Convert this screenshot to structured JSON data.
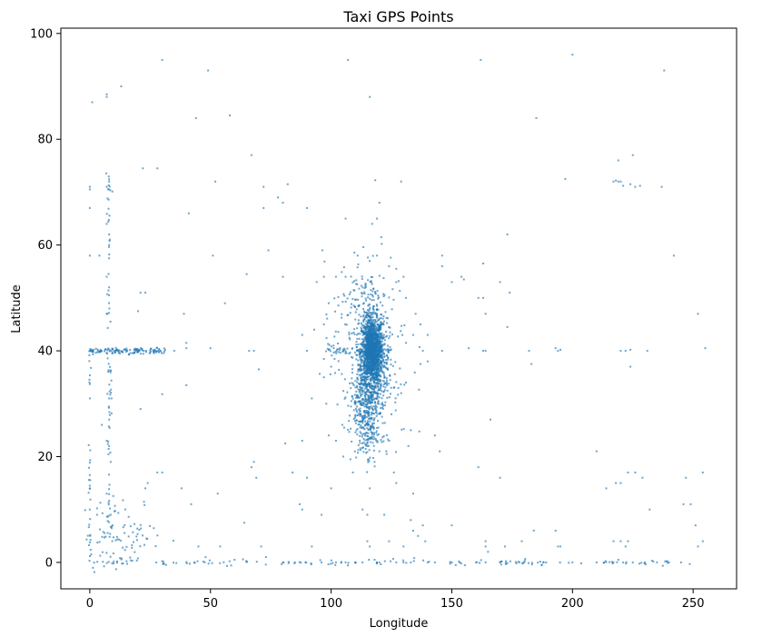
{
  "chart_data": {
    "type": "scatter",
    "title": "Taxi GPS Points",
    "xlabel": "Longitude",
    "ylabel": "Latitude",
    "xlim": [
      -12,
      268
    ],
    "ylim": [
      -5,
      101
    ],
    "xticks": [
      0,
      50,
      100,
      150,
      200,
      250
    ],
    "yticks": [
      0,
      20,
      40,
      60,
      80,
      100
    ],
    "grid": false,
    "point_color": "#1f77b4",
    "series": [
      {
        "name": "GPS points",
        "clusters": [
          {
            "cx": 117,
            "cy": 40,
            "sx": 2.2,
            "sy": 3.0,
            "n": 1400
          },
          {
            "cx": 117,
            "cy": 36,
            "sx": 3.5,
            "sy": 7.0,
            "n": 500
          },
          {
            "cx": 113,
            "cy": 30,
            "sx": 3.0,
            "sy": 3.0,
            "n": 180
          },
          {
            "cx": 115,
            "cy": 24,
            "sx": 2.0,
            "sy": 2.0,
            "n": 80
          },
          {
            "cx": 113,
            "cy": 48,
            "sx": 5.0,
            "sy": 5.0,
            "n": 120
          },
          {
            "cx": 115,
            "cy": 40,
            "sx": 9.0,
            "sy": 9.0,
            "n": 150
          },
          {
            "cx": 14,
            "cy": 5,
            "sx": 8.0,
            "sy": 3.5,
            "n": 90
          }
        ],
        "lines": [
          {
            "from": [
              0,
              40
            ],
            "to": [
              32,
              40
            ],
            "n": 130,
            "jitter": 0.3
          },
          {
            "from": [
              98,
              40
            ],
            "to": [
              125,
              40
            ],
            "n": 60,
            "jitter": 0.3
          },
          {
            "from": [
              0,
              0
            ],
            "to": [
              255,
              0
            ],
            "n": 140,
            "jitter": 0.25
          },
          {
            "from": [
              8,
              0
            ],
            "to": [
              8,
              75
            ],
            "n": 70,
            "jitter": 0.5
          },
          {
            "from": [
              0,
              0
            ],
            "to": [
              0,
              40
            ],
            "n": 30,
            "jitter": 0.3
          }
        ],
        "points": [
          [
            7,
            88.5
          ],
          [
            7,
            88
          ],
          [
            1,
            87
          ],
          [
            13,
            90
          ],
          [
            30,
            95
          ],
          [
            49,
            93
          ],
          [
            58,
            84.5
          ],
          [
            44,
            84
          ],
          [
            107,
            95
          ],
          [
            116,
            88
          ],
          [
            162,
            95
          ],
          [
            200,
            96
          ],
          [
            238,
            93
          ],
          [
            185,
            84
          ],
          [
            67,
            77
          ],
          [
            22,
            74.5
          ],
          [
            28,
            74.5
          ],
          [
            8,
            72
          ],
          [
            7,
            71
          ],
          [
            8,
            70.5
          ],
          [
            0,
            71
          ],
          [
            0,
            70.5
          ],
          [
            52,
            72
          ],
          [
            72,
            71
          ],
          [
            82,
            71.5
          ],
          [
            78,
            69
          ],
          [
            80,
            68
          ],
          [
            72,
            67
          ],
          [
            90,
            67
          ],
          [
            0,
            67
          ],
          [
            41,
            66
          ],
          [
            106,
            65
          ],
          [
            117,
            64
          ],
          [
            119,
            65
          ],
          [
            120,
            68
          ],
          [
            129,
            72
          ],
          [
            197,
            72.5
          ],
          [
            217,
            72
          ],
          [
            218,
            72.2
          ],
          [
            219,
            72
          ],
          [
            220,
            72
          ],
          [
            221,
            71.2
          ],
          [
            224,
            71.5
          ],
          [
            226,
            71
          ],
          [
            228,
            71.2
          ],
          [
            237,
            71
          ],
          [
            219,
            76
          ],
          [
            225,
            77
          ],
          [
            173,
            62
          ],
          [
            170,
            53
          ],
          [
            174,
            51
          ],
          [
            163,
            56.5
          ],
          [
            146,
            58
          ],
          [
            146,
            56
          ],
          [
            150,
            53
          ],
          [
            154,
            54
          ],
          [
            155,
            53.5
          ],
          [
            161,
            50
          ],
          [
            163,
            50
          ],
          [
            164,
            47
          ],
          [
            173,
            44.5
          ],
          [
            157,
            40.5
          ],
          [
            163,
            40
          ],
          [
            164,
            40
          ],
          [
            146,
            40
          ],
          [
            182,
            40
          ],
          [
            193,
            40.5
          ],
          [
            194,
            40
          ],
          [
            195,
            40.2
          ],
          [
            220,
            40
          ],
          [
            222,
            40
          ],
          [
            224,
            40.2
          ],
          [
            231,
            40
          ],
          [
            183,
            37.5
          ],
          [
            224,
            37
          ],
          [
            242,
            58
          ],
          [
            252,
            47
          ],
          [
            255,
            40.5
          ],
          [
            210,
            21
          ],
          [
            214,
            14
          ],
          [
            218,
            15
          ],
          [
            220,
            15
          ],
          [
            223,
            17
          ],
          [
            226,
            17
          ],
          [
            229,
            16
          ],
          [
            232,
            10
          ],
          [
            246,
            11
          ],
          [
            247,
            16
          ],
          [
            249,
            11
          ],
          [
            251,
            7
          ],
          [
            252,
            3
          ],
          [
            254,
            4
          ],
          [
            254,
            17
          ],
          [
            220,
            4
          ],
          [
            222,
            3
          ],
          [
            223,
            4
          ],
          [
            217,
            4
          ],
          [
            195,
            3
          ],
          [
            184,
            6
          ],
          [
            179,
            4
          ],
          [
            170,
            16
          ],
          [
            166,
            27
          ],
          [
            161,
            18
          ],
          [
            145,
            21
          ],
          [
            143,
            24
          ],
          [
            133,
            25
          ],
          [
            132,
            22
          ],
          [
            134,
            13
          ],
          [
            130,
            3
          ],
          [
            138,
            7
          ],
          [
            139,
            4
          ],
          [
            136,
            5
          ],
          [
            124,
            4
          ],
          [
            122,
            9
          ],
          [
            116,
            14
          ],
          [
            109,
            17
          ],
          [
            100,
            14
          ],
          [
            96,
            9
          ],
          [
            87,
            11
          ],
          [
            88,
            10
          ],
          [
            90,
            16
          ],
          [
            88,
            23
          ],
          [
            81,
            22.5
          ],
          [
            84,
            17
          ],
          [
            92,
            31
          ],
          [
            90,
            40
          ],
          [
            93,
            44
          ],
          [
            88,
            43
          ],
          [
            94,
            53
          ],
          [
            97,
            54
          ],
          [
            80,
            54
          ],
          [
            74,
            59
          ],
          [
            65,
            54.5
          ],
          [
            56,
            49
          ],
          [
            51,
            58
          ],
          [
            39,
            47
          ],
          [
            30,
            31.8
          ],
          [
            21,
            29
          ],
          [
            40,
            33.5
          ],
          [
            70,
            36.5
          ],
          [
            68,
            40
          ],
          [
            66,
            40
          ],
          [
            50,
            40.5
          ],
          [
            40,
            40.5
          ],
          [
            40,
            41.5
          ],
          [
            35,
            40
          ],
          [
            21,
            51
          ],
          [
            23,
            51
          ],
          [
            20,
            47.5
          ],
          [
            7,
            54
          ],
          [
            8,
            52
          ],
          [
            8,
            50.5
          ],
          [
            7,
            47
          ],
          [
            4,
            58
          ],
          [
            0,
            58
          ],
          [
            7,
            64
          ],
          [
            8,
            62
          ],
          [
            8,
            60
          ],
          [
            8,
            57.5
          ],
          [
            0,
            31
          ],
          [
            8,
            31
          ],
          [
            9,
            31
          ],
          [
            5,
            26
          ],
          [
            8,
            27
          ],
          [
            7,
            23
          ],
          [
            8,
            22
          ],
          [
            0,
            16.5
          ],
          [
            0,
            14
          ],
          [
            7,
            13
          ],
          [
            0,
            10
          ],
          [
            3,
            9
          ],
          [
            38,
            14
          ],
          [
            42,
            11
          ],
          [
            53,
            13
          ],
          [
            64,
            7.5
          ],
          [
            67,
            18
          ],
          [
            68,
            19
          ],
          [
            69,
            16
          ],
          [
            28,
            17
          ],
          [
            30,
            17
          ],
          [
            23,
            14
          ],
          [
            24,
            15
          ],
          [
            45,
            3
          ],
          [
            48,
            1
          ],
          [
            54,
            3
          ],
          [
            60,
            0.5
          ],
          [
            73,
            1
          ],
          [
            71,
            3
          ],
          [
            80,
            0
          ],
          [
            85,
            0
          ],
          [
            96,
            0
          ],
          [
            102,
            0
          ],
          [
            106,
            0
          ],
          [
            92,
            3
          ],
          [
            126,
            17
          ],
          [
            127,
            15
          ],
          [
            133,
            8
          ],
          [
            134,
            6
          ],
          [
            125,
            28
          ],
          [
            129,
            32
          ],
          [
            126,
            33
          ],
          [
            131,
            34
          ],
          [
            137,
            37.5
          ],
          [
            140,
            38
          ],
          [
            138,
            40
          ],
          [
            131,
            41.5
          ],
          [
            134,
            43
          ],
          [
            137,
            45
          ],
          [
            140,
            43
          ],
          [
            135,
            47
          ],
          [
            127,
            55.5
          ],
          [
            124,
            56
          ],
          [
            127,
            53
          ],
          [
            131,
            50
          ],
          [
            130,
            54
          ],
          [
            119,
            58
          ],
          [
            116,
            57
          ],
          [
            111,
            58
          ],
          [
            106,
            54
          ],
          [
            102,
            54
          ],
          [
            99,
            49
          ],
          [
            97,
            45
          ],
          [
            101,
            41
          ],
          [
            100,
            37
          ],
          [
            97,
            35
          ],
          [
            98,
            30
          ],
          [
            99,
            24
          ],
          [
            102,
            23
          ],
          [
            105,
            20
          ],
          [
            108,
            19.5
          ],
          [
            118,
            19
          ],
          [
            120,
            21
          ],
          [
            124,
            23
          ],
          [
            123,
            20.5
          ],
          [
            113,
            10
          ],
          [
            115,
            9
          ],
          [
            115,
            4
          ],
          [
            116,
            3
          ],
          [
            118,
            0.5
          ],
          [
            110,
            0
          ],
          [
            113,
            0
          ],
          [
            120,
            0
          ],
          [
            127,
            0
          ],
          [
            130,
            0
          ],
          [
            133,
            0
          ],
          [
            140,
            0
          ],
          [
            143,
            0
          ],
          [
            150,
            0
          ],
          [
            160,
            0
          ],
          [
            164,
            0
          ],
          [
            170,
            0
          ],
          [
            180,
            0
          ],
          [
            188,
            0
          ],
          [
            200,
            0
          ],
          [
            210,
            0
          ],
          [
            217,
            0
          ],
          [
            219,
            0.5
          ],
          [
            221,
            0
          ],
          [
            225,
            0
          ],
          [
            230,
            0
          ],
          [
            235,
            0
          ],
          [
            240,
            0
          ],
          [
            245,
            0
          ],
          [
            150,
            7
          ],
          [
            164,
            4
          ],
          [
            164,
            3
          ],
          [
            165,
            2
          ],
          [
            172,
            3
          ],
          [
            194,
            3
          ],
          [
            193,
            6
          ]
        ]
      }
    ]
  }
}
